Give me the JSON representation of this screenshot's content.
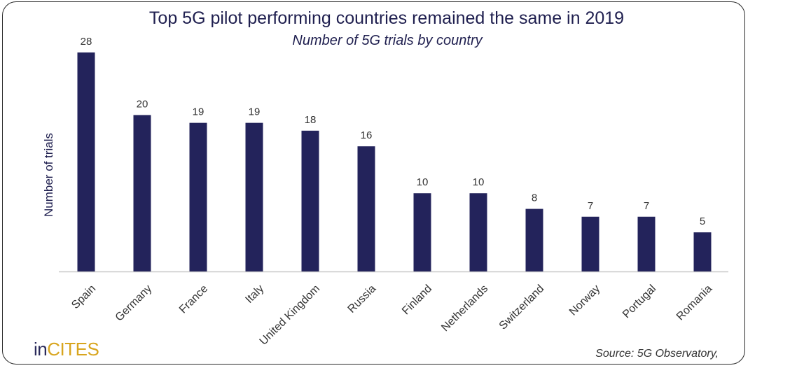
{
  "chart_data": {
    "type": "bar",
    "title": "Top 5G pilot performing countries remained the same in 2019",
    "subtitle": "Number of 5G trials by country",
    "ylabel": "Number of trials",
    "xlabel": "",
    "categories": [
      "Spain",
      "Germany",
      "France",
      "Italy",
      "United Kingdom",
      "Russia",
      "Finland",
      "Netherlands",
      "Switzerland",
      "Norway",
      "Portugal",
      "Romania"
    ],
    "values": [
      28,
      20,
      19,
      19,
      18,
      16,
      10,
      10,
      8,
      7,
      7,
      5
    ],
    "ylim": [
      0,
      30
    ],
    "grid": false,
    "legend": "none",
    "bar_color": "#23235b"
  },
  "logo": {
    "part1": "in",
    "part2": "CITES"
  },
  "source": "Source: 5G Observatory,"
}
